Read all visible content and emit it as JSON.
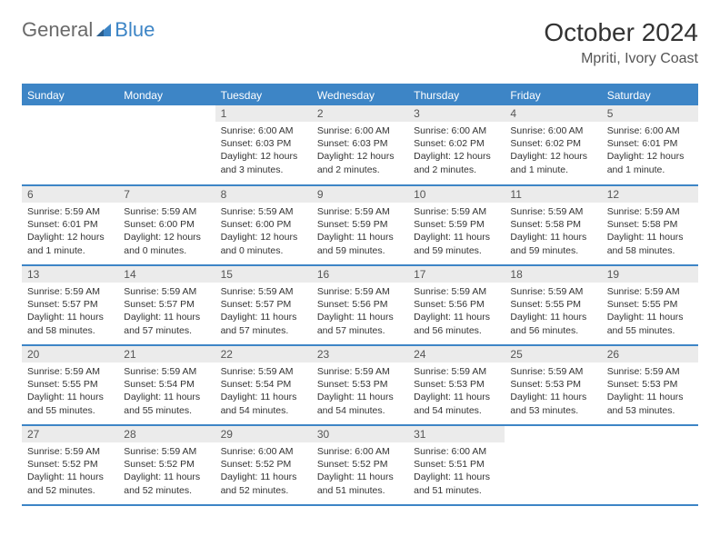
{
  "brand": {
    "part1": "General",
    "part2": "Blue"
  },
  "title": "October 2024",
  "location": "Mpriti, Ivory Coast",
  "styling": {
    "header_bg": "#3d85c6",
    "header_fg": "#ffffff",
    "daynum_bg": "#ebebeb",
    "row_divider": "#3d85c6",
    "page_bg": "#ffffff",
    "text_color": "#333333",
    "logo_general_color": "#6a6a6a",
    "logo_blue_color": "#3d85c6",
    "title_fontsize": 28,
    "location_fontsize": 16,
    "dayhead_fontsize": 12,
    "daynum_fontsize": 12,
    "body_fontsize": 10.5
  },
  "daynames": [
    "Sunday",
    "Monday",
    "Tuesday",
    "Wednesday",
    "Thursday",
    "Friday",
    "Saturday"
  ],
  "weeks": [
    [
      {
        "n": "",
        "sr": "",
        "ss": "",
        "dl": ""
      },
      {
        "n": "",
        "sr": "",
        "ss": "",
        "dl": ""
      },
      {
        "n": "1",
        "sr": "Sunrise: 6:00 AM",
        "ss": "Sunset: 6:03 PM",
        "dl": "Daylight: 12 hours and 3 minutes."
      },
      {
        "n": "2",
        "sr": "Sunrise: 6:00 AM",
        "ss": "Sunset: 6:03 PM",
        "dl": "Daylight: 12 hours and 2 minutes."
      },
      {
        "n": "3",
        "sr": "Sunrise: 6:00 AM",
        "ss": "Sunset: 6:02 PM",
        "dl": "Daylight: 12 hours and 2 minutes."
      },
      {
        "n": "4",
        "sr": "Sunrise: 6:00 AM",
        "ss": "Sunset: 6:02 PM",
        "dl": "Daylight: 12 hours and 1 minute."
      },
      {
        "n": "5",
        "sr": "Sunrise: 6:00 AM",
        "ss": "Sunset: 6:01 PM",
        "dl": "Daylight: 12 hours and 1 minute."
      }
    ],
    [
      {
        "n": "6",
        "sr": "Sunrise: 5:59 AM",
        "ss": "Sunset: 6:01 PM",
        "dl": "Daylight: 12 hours and 1 minute."
      },
      {
        "n": "7",
        "sr": "Sunrise: 5:59 AM",
        "ss": "Sunset: 6:00 PM",
        "dl": "Daylight: 12 hours and 0 minutes."
      },
      {
        "n": "8",
        "sr": "Sunrise: 5:59 AM",
        "ss": "Sunset: 6:00 PM",
        "dl": "Daylight: 12 hours and 0 minutes."
      },
      {
        "n": "9",
        "sr": "Sunrise: 5:59 AM",
        "ss": "Sunset: 5:59 PM",
        "dl": "Daylight: 11 hours and 59 minutes."
      },
      {
        "n": "10",
        "sr": "Sunrise: 5:59 AM",
        "ss": "Sunset: 5:59 PM",
        "dl": "Daylight: 11 hours and 59 minutes."
      },
      {
        "n": "11",
        "sr": "Sunrise: 5:59 AM",
        "ss": "Sunset: 5:58 PM",
        "dl": "Daylight: 11 hours and 59 minutes."
      },
      {
        "n": "12",
        "sr": "Sunrise: 5:59 AM",
        "ss": "Sunset: 5:58 PM",
        "dl": "Daylight: 11 hours and 58 minutes."
      }
    ],
    [
      {
        "n": "13",
        "sr": "Sunrise: 5:59 AM",
        "ss": "Sunset: 5:57 PM",
        "dl": "Daylight: 11 hours and 58 minutes."
      },
      {
        "n": "14",
        "sr": "Sunrise: 5:59 AM",
        "ss": "Sunset: 5:57 PM",
        "dl": "Daylight: 11 hours and 57 minutes."
      },
      {
        "n": "15",
        "sr": "Sunrise: 5:59 AM",
        "ss": "Sunset: 5:57 PM",
        "dl": "Daylight: 11 hours and 57 minutes."
      },
      {
        "n": "16",
        "sr": "Sunrise: 5:59 AM",
        "ss": "Sunset: 5:56 PM",
        "dl": "Daylight: 11 hours and 57 minutes."
      },
      {
        "n": "17",
        "sr": "Sunrise: 5:59 AM",
        "ss": "Sunset: 5:56 PM",
        "dl": "Daylight: 11 hours and 56 minutes."
      },
      {
        "n": "18",
        "sr": "Sunrise: 5:59 AM",
        "ss": "Sunset: 5:55 PM",
        "dl": "Daylight: 11 hours and 56 minutes."
      },
      {
        "n": "19",
        "sr": "Sunrise: 5:59 AM",
        "ss": "Sunset: 5:55 PM",
        "dl": "Daylight: 11 hours and 55 minutes."
      }
    ],
    [
      {
        "n": "20",
        "sr": "Sunrise: 5:59 AM",
        "ss": "Sunset: 5:55 PM",
        "dl": "Daylight: 11 hours and 55 minutes."
      },
      {
        "n": "21",
        "sr": "Sunrise: 5:59 AM",
        "ss": "Sunset: 5:54 PM",
        "dl": "Daylight: 11 hours and 55 minutes."
      },
      {
        "n": "22",
        "sr": "Sunrise: 5:59 AM",
        "ss": "Sunset: 5:54 PM",
        "dl": "Daylight: 11 hours and 54 minutes."
      },
      {
        "n": "23",
        "sr": "Sunrise: 5:59 AM",
        "ss": "Sunset: 5:53 PM",
        "dl": "Daylight: 11 hours and 54 minutes."
      },
      {
        "n": "24",
        "sr": "Sunrise: 5:59 AM",
        "ss": "Sunset: 5:53 PM",
        "dl": "Daylight: 11 hours and 54 minutes."
      },
      {
        "n": "25",
        "sr": "Sunrise: 5:59 AM",
        "ss": "Sunset: 5:53 PM",
        "dl": "Daylight: 11 hours and 53 minutes."
      },
      {
        "n": "26",
        "sr": "Sunrise: 5:59 AM",
        "ss": "Sunset: 5:53 PM",
        "dl": "Daylight: 11 hours and 53 minutes."
      }
    ],
    [
      {
        "n": "27",
        "sr": "Sunrise: 5:59 AM",
        "ss": "Sunset: 5:52 PM",
        "dl": "Daylight: 11 hours and 52 minutes."
      },
      {
        "n": "28",
        "sr": "Sunrise: 5:59 AM",
        "ss": "Sunset: 5:52 PM",
        "dl": "Daylight: 11 hours and 52 minutes."
      },
      {
        "n": "29",
        "sr": "Sunrise: 6:00 AM",
        "ss": "Sunset: 5:52 PM",
        "dl": "Daylight: 11 hours and 52 minutes."
      },
      {
        "n": "30",
        "sr": "Sunrise: 6:00 AM",
        "ss": "Sunset: 5:52 PM",
        "dl": "Daylight: 11 hours and 51 minutes."
      },
      {
        "n": "31",
        "sr": "Sunrise: 6:00 AM",
        "ss": "Sunset: 5:51 PM",
        "dl": "Daylight: 11 hours and 51 minutes."
      },
      {
        "n": "",
        "sr": "",
        "ss": "",
        "dl": ""
      },
      {
        "n": "",
        "sr": "",
        "ss": "",
        "dl": ""
      }
    ]
  ]
}
